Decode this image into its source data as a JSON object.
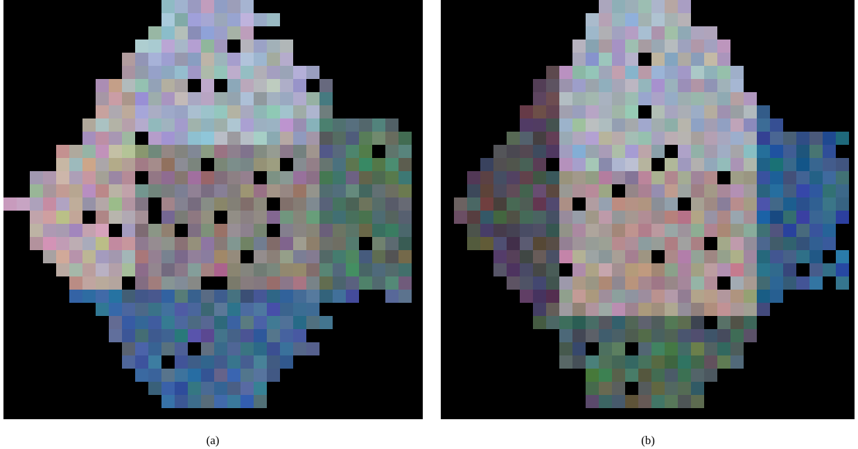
{
  "figure": {
    "panels": [
      {
        "caption": "(a)"
      },
      {
        "caption": "(b)"
      }
    ]
  }
}
